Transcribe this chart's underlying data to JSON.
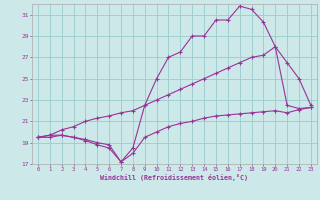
{
  "xlabel": "Windchill (Refroidissement éolien,°C)",
  "bg_color": "#cce8e8",
  "line_color": "#993399",
  "grid_color": "#99cccc",
  "xmin": -0.5,
  "xmax": 23.5,
  "ymin": 17,
  "ymax": 32,
  "yticks": [
    17,
    19,
    21,
    23,
    25,
    27,
    29,
    31
  ],
  "xticks": [
    0,
    1,
    2,
    3,
    4,
    5,
    6,
    7,
    8,
    9,
    10,
    11,
    12,
    13,
    14,
    15,
    16,
    17,
    18,
    19,
    20,
    21,
    22,
    23
  ],
  "line1_x": [
    0,
    1,
    2,
    3,
    4,
    5,
    6,
    7,
    8,
    9,
    10,
    11,
    12,
    13,
    14,
    15,
    16,
    17,
    18,
    19,
    20,
    21,
    22,
    23
  ],
  "line1_y": [
    19.5,
    19.5,
    19.7,
    19.5,
    19.2,
    18.8,
    18.5,
    17.2,
    18.0,
    19.5,
    20.0,
    20.5,
    20.8,
    21.0,
    21.3,
    21.5,
    21.6,
    21.7,
    21.8,
    21.9,
    22.0,
    21.8,
    22.1,
    22.3
  ],
  "line2_x": [
    0,
    1,
    2,
    3,
    4,
    5,
    6,
    7,
    8,
    9,
    10,
    11,
    12,
    13,
    14,
    15,
    16,
    17,
    18,
    19,
    20,
    21,
    22,
    23
  ],
  "line2_y": [
    19.5,
    19.7,
    20.2,
    20.5,
    21.0,
    21.3,
    21.5,
    21.8,
    22.0,
    22.5,
    23.0,
    23.5,
    24.0,
    24.5,
    25.0,
    25.5,
    26.0,
    26.5,
    27.0,
    27.2,
    28.0,
    26.5,
    25.0,
    22.5
  ],
  "line3_x": [
    0,
    1,
    2,
    3,
    4,
    5,
    6,
    7,
    8,
    9,
    10,
    11,
    12,
    13,
    14,
    15,
    16,
    17,
    18,
    19,
    20,
    21,
    22,
    23
  ],
  "line3_y": [
    19.5,
    19.7,
    19.7,
    19.5,
    19.3,
    19.0,
    18.8,
    17.2,
    18.5,
    22.5,
    25.0,
    27.0,
    27.5,
    29.0,
    29.0,
    30.5,
    30.5,
    31.8,
    31.5,
    30.3,
    28.0,
    22.5,
    22.2,
    22.3
  ]
}
